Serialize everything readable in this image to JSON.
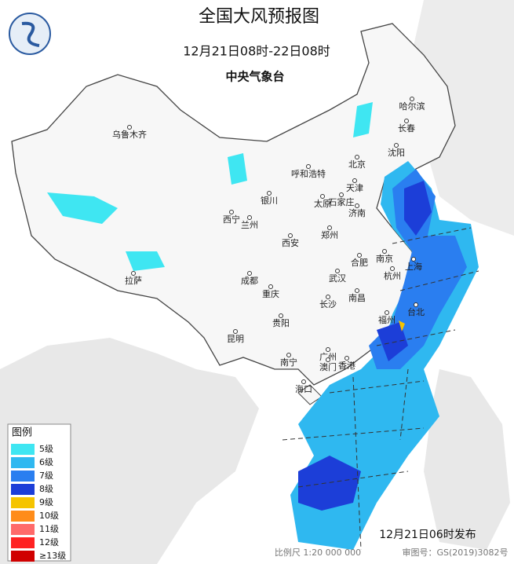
{
  "header": {
    "title": "全国大风预报图",
    "period": "12月21日08时-22日08时",
    "issuer": "中央气象台"
  },
  "cities": [
    {
      "label": "乌鲁木齐"
    },
    {
      "label": "哈尔滨"
    },
    {
      "label": "长春"
    },
    {
      "label": "沈阳"
    },
    {
      "label": "北京"
    },
    {
      "label": "天津"
    },
    {
      "label": "呼和浩特"
    },
    {
      "label": "石家庄"
    },
    {
      "label": "太原"
    },
    {
      "label": "济南"
    },
    {
      "label": "银川"
    },
    {
      "label": "西宁"
    },
    {
      "label": "兰州"
    },
    {
      "label": "郑州"
    },
    {
      "label": "西安"
    },
    {
      "label": "合肥"
    },
    {
      "label": "南京"
    },
    {
      "label": "上海"
    },
    {
      "label": "杭州"
    },
    {
      "label": "武汉"
    },
    {
      "label": "成都"
    },
    {
      "label": "重庆"
    },
    {
      "label": "长沙"
    },
    {
      "label": "南昌"
    },
    {
      "label": "福州"
    },
    {
      "label": "台北"
    },
    {
      "label": "贵阳"
    },
    {
      "label": "昆明"
    },
    {
      "label": "拉萨"
    },
    {
      "label": "南宁"
    },
    {
      "label": "广州"
    },
    {
      "label": "香港"
    },
    {
      "label": "澳门"
    },
    {
      "label": "海口"
    }
  ],
  "legend": {
    "title": "图例",
    "items": [
      {
        "label": "5级",
        "color": "#3fe6f2"
      },
      {
        "label": "6级",
        "color": "#2fb8f0"
      },
      {
        "label": "7级",
        "color": "#2a7ef0"
      },
      {
        "label": "8级",
        "color": "#1c3ed8"
      },
      {
        "label": "9级",
        "color": "#f5c400"
      },
      {
        "label": "10级",
        "color": "#ff8c1a"
      },
      {
        "label": "11级",
        "color": "#ff6a6a"
      },
      {
        "label": "12级",
        "color": "#ff2222"
      },
      {
        "label": "≥13级",
        "color": "#d00000"
      }
    ]
  },
  "footer": {
    "issued": "12月21日06时发布",
    "scale": "比例尺 1:20 000 000",
    "review": "审图号：GS(2019)3082号"
  }
}
